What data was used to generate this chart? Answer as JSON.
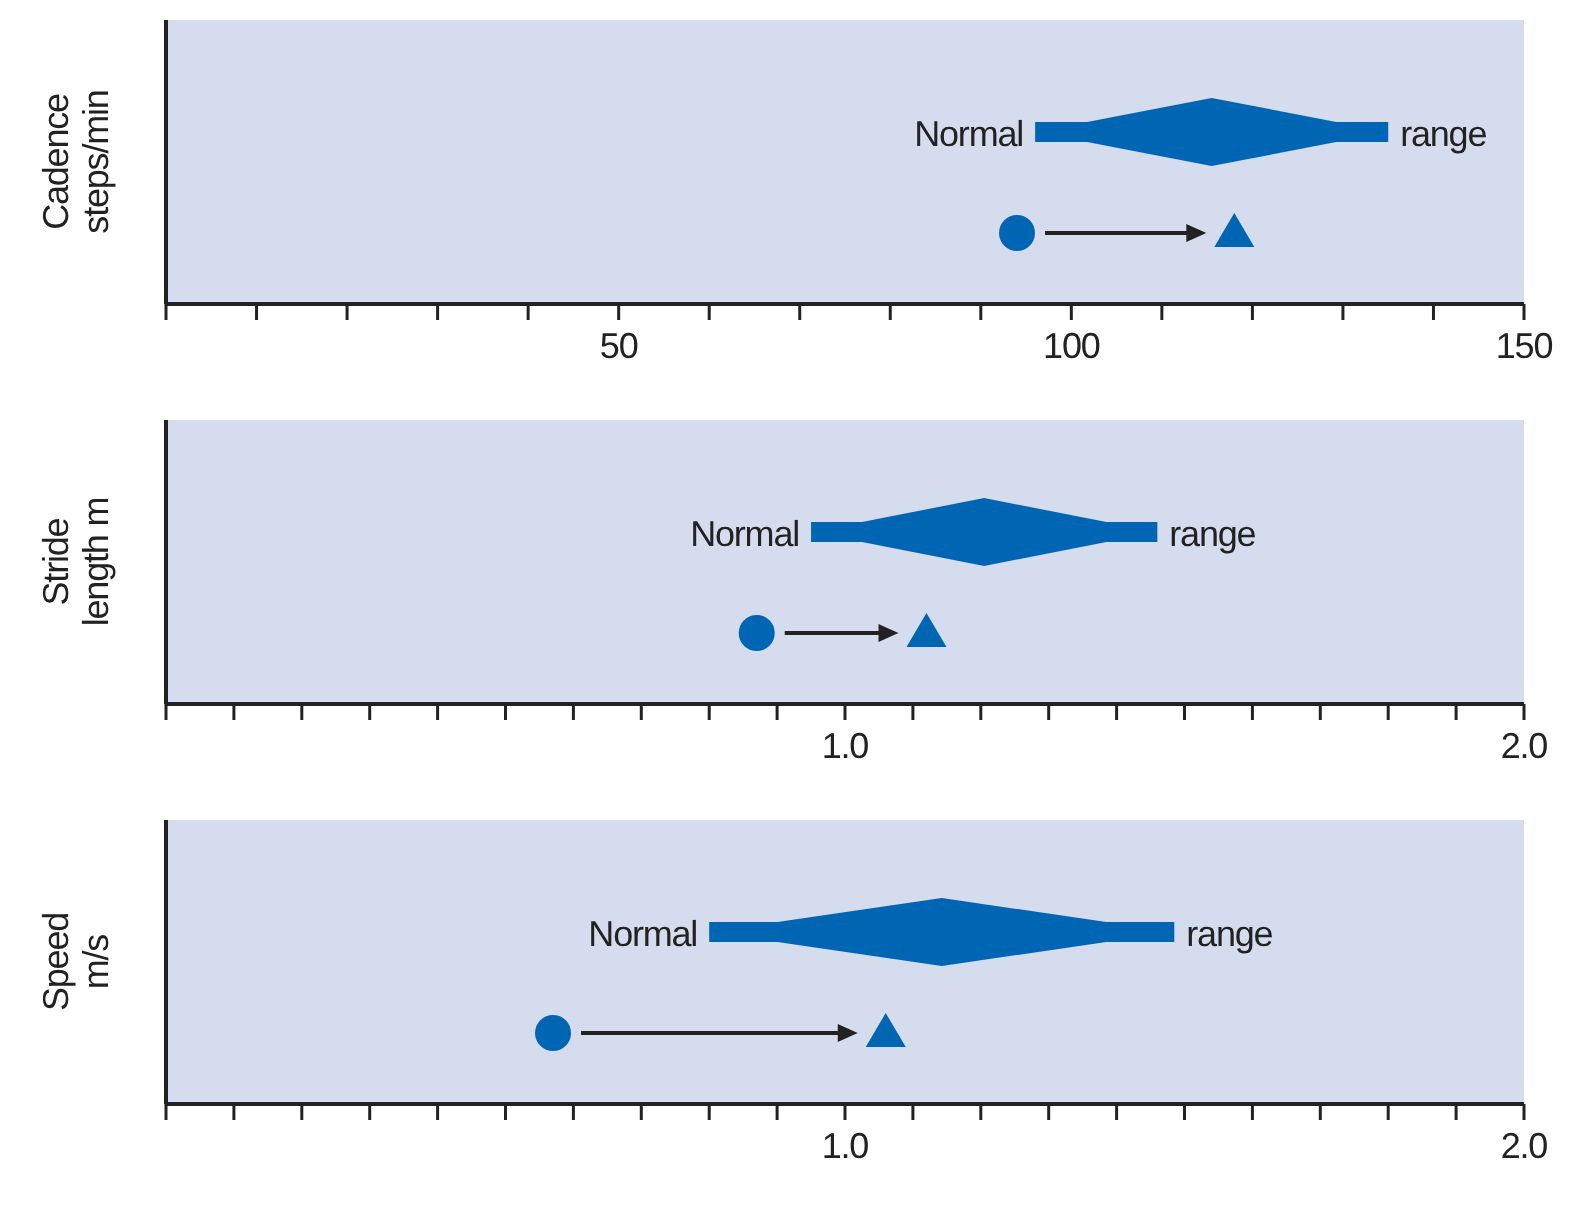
{
  "chart_data": [
    {
      "type": "scatter",
      "orientation": "horizontal",
      "ylabel": "Cadence\nsteps/min",
      "categories": [
        null,
        null
      ],
      "tick_labels": "x",
      "xlim": [
        0,
        150
      ],
      "xticks": [
        {
          "value": 0,
          "label": null
        },
        {
          "value": 10,
          "label": null
        },
        {
          "value": 20,
          "label": null
        },
        {
          "value": 30,
          "label": null
        },
        {
          "value": 40,
          "label": null
        },
        50,
        {
          "value": 60,
          "label": null
        },
        {
          "value": 70,
          "label": null
        },
        {
          "value": 80,
          "label": null
        },
        {
          "value": 90,
          "label": null
        },
        100,
        {
          "value": 110,
          "label": null
        },
        {
          "value": 120,
          "label": null
        },
        {
          "value": 130,
          "label": null
        },
        {
          "value": 140,
          "label": null
        },
        150
      ],
      "annotations": [
        "Normal",
        "range"
      ],
      "series": [
        {
          "type": "bar",
          "color": "#0066b3",
          "base": [
            96,
            null
          ],
          "values": [
            39,
            null
          ]
        },
        {
          "marker": "circle",
          "color": "#0066b3",
          "values": [
            null,
            94
          ]
        },
        {
          "marker": "triangle",
          "color": "#0066b3",
          "values": [
            null,
            118
          ]
        }
      ]
    },
    {
      "type": "scatter",
      "orientation": "horizontal",
      "ylabel": "Stride\nlength m",
      "categories": [
        null,
        null
      ],
      "tick_labels": "x",
      "xlim": [
        0,
        2
      ],
      "xticks": [
        {
          "value": 0,
          "label": null
        },
        {
          "value": 0.1,
          "label": null
        },
        {
          "value": 0.2,
          "label": null
        },
        {
          "value": 0.3,
          "label": null
        },
        {
          "value": 0.4,
          "label": null
        },
        {
          "value": 0.5,
          "label": null
        },
        {
          "value": 0.6,
          "label": null
        },
        {
          "value": 0.7,
          "label": null
        },
        {
          "value": 0.8,
          "label": null
        },
        {
          "value": 0.9,
          "label": null
        },
        {
          "value": 1,
          "label": "1.0"
        },
        {
          "value": 1.1,
          "label": null
        },
        {
          "value": 1.2,
          "label": null
        },
        {
          "value": 1.3,
          "label": null
        },
        {
          "value": 1.4,
          "label": null
        },
        {
          "value": 1.5,
          "label": null
        },
        {
          "value": 1.6,
          "label": null
        },
        {
          "value": 1.7,
          "label": null
        },
        {
          "value": 1.8,
          "label": null
        },
        {
          "value": 1.9,
          "label": null
        },
        {
          "value": 2,
          "label": "2.0"
        }
      ],
      "annotations": [
        "Normal",
        "range"
      ],
      "series": [
        {
          "type": "bar",
          "color": "#0066b3",
          "base": [
            0.95,
            null
          ],
          "values": [
            0.51,
            null
          ]
        },
        {
          "marker": "circle",
          "color": "#0066b3",
          "values": [
            null,
            0.87
          ]
        },
        {
          "marker": "triangle",
          "color": "#0066b3",
          "values": [
            null,
            1.12
          ]
        }
      ]
    },
    {
      "type": "scatter",
      "orientation": "horizontal",
      "ylabel": "Speed\nm/s",
      "categories": [
        null,
        null
      ],
      "tick_labels": "x",
      "xlim": [
        0,
        2
      ],
      "xticks": [
        {
          "value": 0,
          "label": null
        },
        {
          "value": 0.1,
          "label": null
        },
        {
          "value": 0.2,
          "label": null
        },
        {
          "value": 0.3,
          "label": null
        },
        {
          "value": 0.4,
          "label": null
        },
        {
          "value": 0.5,
          "label": null
        },
        {
          "value": 0.6,
          "label": null
        },
        {
          "value": 0.7,
          "label": null
        },
        {
          "value": 0.8,
          "label": null
        },
        {
          "value": 0.9,
          "label": null
        },
        {
          "value": 1,
          "label": "1.0"
        },
        {
          "value": 1.1,
          "label": null
        },
        {
          "value": 1.2,
          "label": null
        },
        {
          "value": 1.3,
          "label": null
        },
        {
          "value": 1.4,
          "label": null
        },
        {
          "value": 1.5,
          "label": null
        },
        {
          "value": 1.6,
          "label": null
        },
        {
          "value": 1.7,
          "label": null
        },
        {
          "value": 1.8,
          "label": null
        },
        {
          "value": 1.9,
          "label": null
        },
        {
          "value": 2,
          "label": "2.0"
        }
      ],
      "annotations": [
        "Normal",
        "range"
      ],
      "series": [
        {
          "type": "bar",
          "color": "#0066b3",
          "base": [
            0.8,
            null
          ],
          "values": [
            0.685,
            null
          ]
        },
        {
          "marker": "circle",
          "color": "#0066b3",
          "values": [
            null,
            0.57
          ]
        },
        {
          "marker": "triangle",
          "color": "#0066b3",
          "values": [
            null,
            1.06
          ]
        }
      ]
    }
  ]
}
